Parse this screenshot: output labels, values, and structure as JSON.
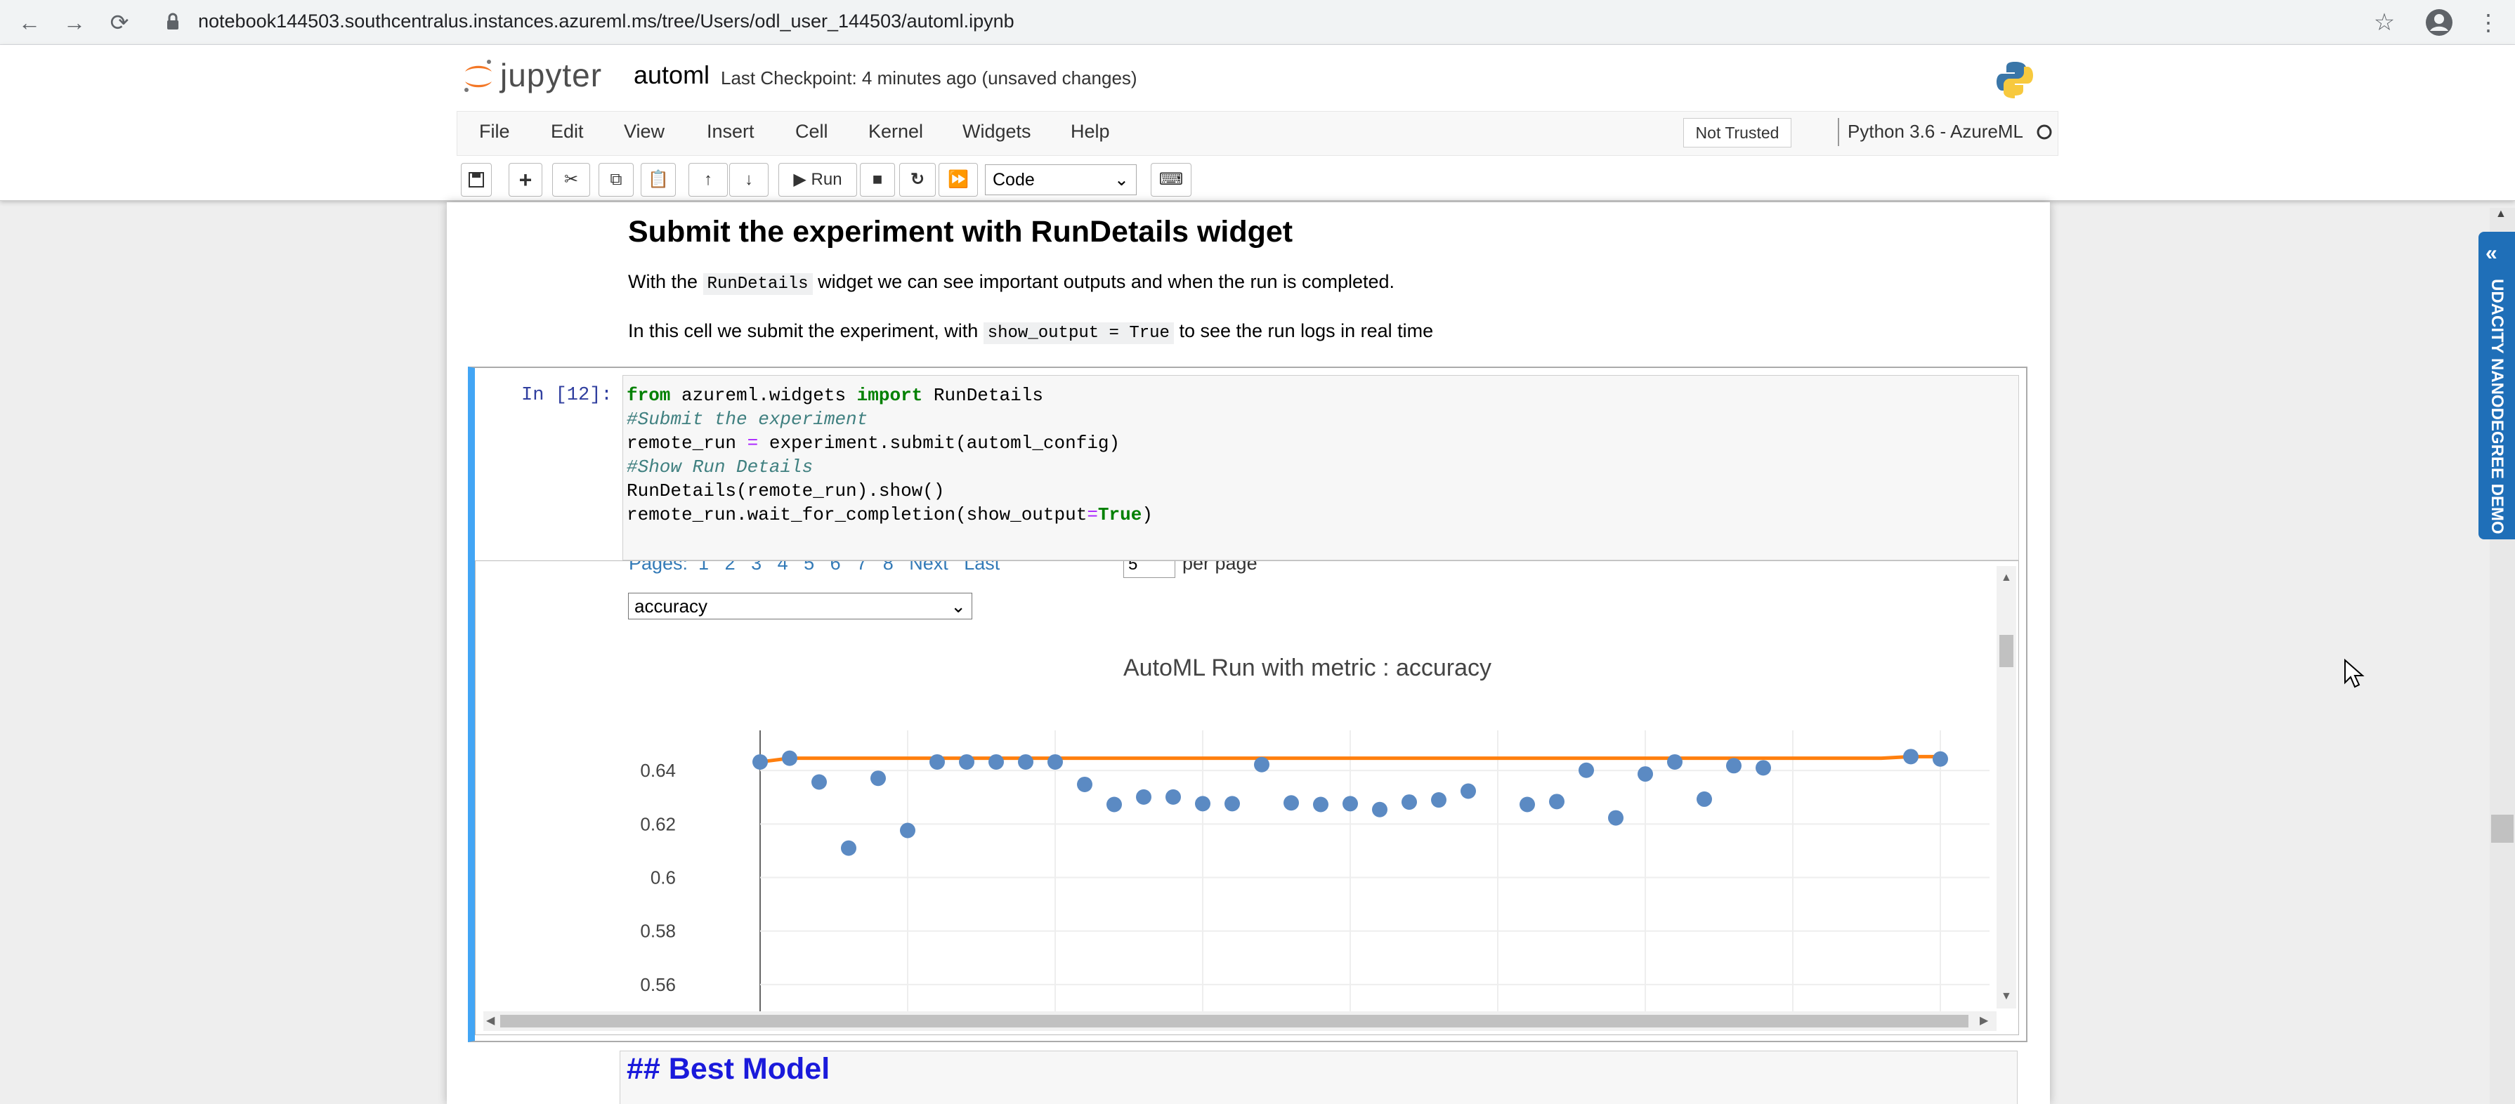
{
  "browser": {
    "url": "notebook144503.southcentralus.instances.azureml.ms/tree/Users/odl_user_144503/automl.ipynb"
  },
  "header": {
    "logo_text": "jupyter",
    "notebook_name": "automl",
    "checkpoint": "Last Checkpoint: 4 minutes ago  (unsaved changes)"
  },
  "menu": [
    "File",
    "Edit",
    "View",
    "Insert",
    "Cell",
    "Kernel",
    "Widgets",
    "Help"
  ],
  "status": {
    "trusted": "Not Trusted",
    "kernel": "Python 3.6 - AzureML"
  },
  "toolbar": {
    "run_label": "Run",
    "cell_type": "Code"
  },
  "markdown": {
    "heading": "Submit the experiment with RunDetails widget",
    "p1_pre": "With the ",
    "p1_code": "RunDetails",
    "p1_post": " widget we can see important outputs and when the run is completed.",
    "p2_pre": "In this cell we submit the experiment, with ",
    "p2_code": "show_output = True",
    "p2_post": " to see the run logs in real time"
  },
  "cell": {
    "prompt": "In [12]:"
  },
  "widget": {
    "pages_text": "Pages:  1   2   3   4   5   6   7   8   Next   Last",
    "per_page": "5",
    "per_page_label": "per page",
    "metric_select": "accuracy"
  },
  "chart_data": {
    "type": "scatter",
    "title": "AutoML Run with metric : accuracy",
    "ylim": [
      0.55,
      0.655
    ],
    "yticks": [
      "0.64",
      "0.62",
      "0.6",
      "0.58",
      "0.56"
    ],
    "series": [
      {
        "values": [
          0.6432,
          0.6446,
          0.6357,
          0.611,
          0.6371,
          0.6176,
          0.6432,
          0.6432,
          0.6432,
          0.6432,
          0.6432,
          0.6348,
          0.6273,
          0.6301,
          0.6301,
          0.6276,
          0.6276,
          0.6422,
          0.6279,
          0.6273,
          0.6276,
          0.6254,
          0.6282,
          0.629,
          0.6323,
          null,
          0.6273,
          0.6284,
          0.6401,
          0.6223,
          0.6387,
          0.6432,
          0.6293,
          0.6418,
          0.641,
          null,
          null,
          null,
          null,
          0.6452,
          0.6443
        ]
      },
      {
        "type": "line",
        "values": [
          0.6432,
          0.6446,
          0.6446,
          0.6446,
          0.6446,
          0.6446,
          0.6446,
          0.6446,
          0.6446,
          0.6446,
          0.6446,
          0.6446,
          0.6446,
          0.6446,
          0.6446,
          0.6446,
          0.6446,
          0.6446,
          0.6446,
          0.6446,
          0.6446,
          0.6446,
          0.6446,
          0.6446,
          0.6446,
          0.6446,
          0.6446,
          0.6446,
          0.6446,
          0.6446,
          0.6446,
          0.6446,
          0.6446,
          0.6446,
          0.6446,
          0.6446,
          0.6446,
          0.6446,
          0.6446,
          0.6452,
          0.6452
        ]
      }
    ],
    "colors": {
      "points": "#5b8ac3",
      "line": "#ff7f0e"
    }
  },
  "next_cell": {
    "text": "## Best Model"
  },
  "side_panel": {
    "label": "UDACITY NANODEGREE DEMO"
  }
}
